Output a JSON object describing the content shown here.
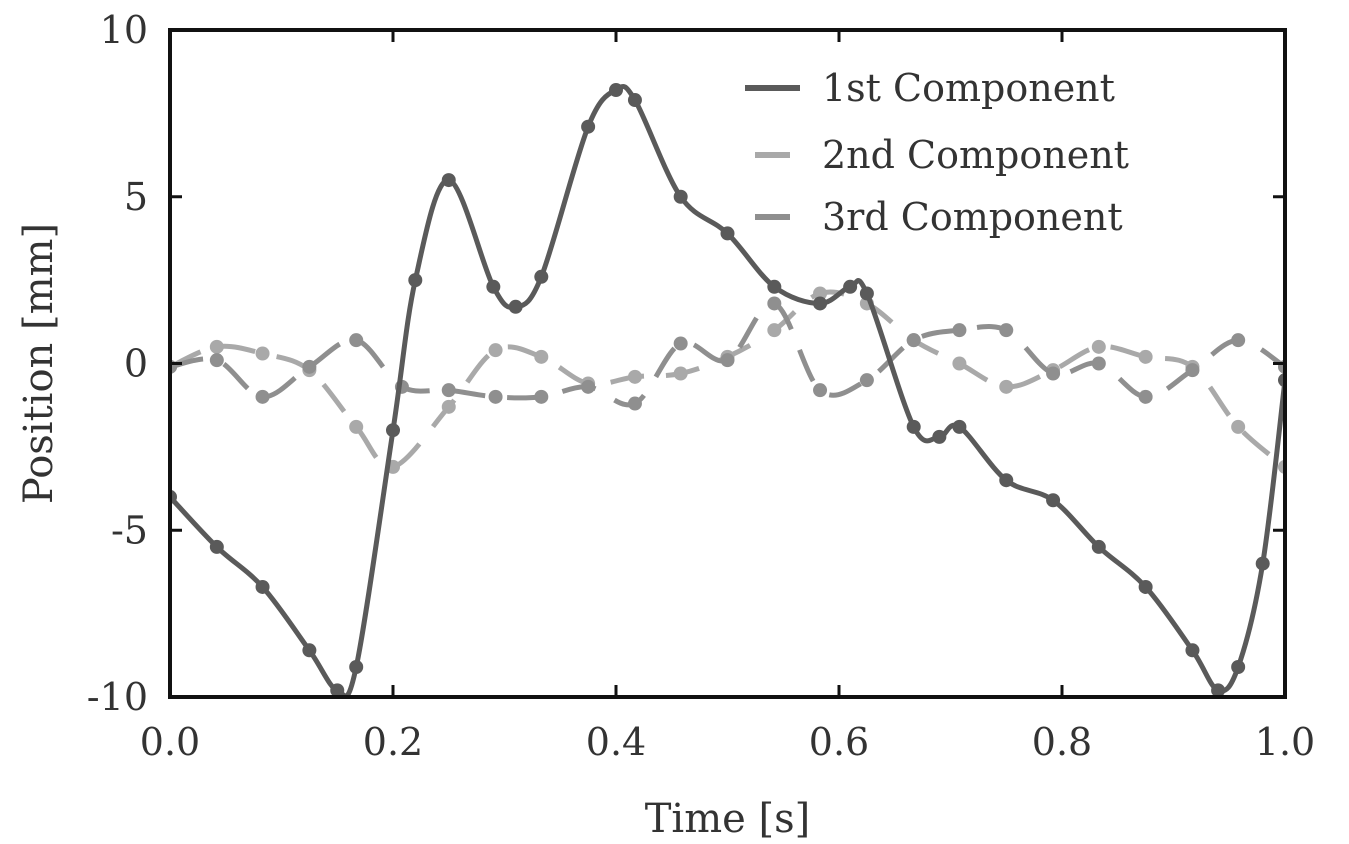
{
  "colors": {
    "series_1": "#5a5a5a",
    "series_2": "#a9a9a9",
    "series_3": "#8f8f8f",
    "axis": "#111111",
    "text": "#333333"
  },
  "chart_data": {
    "type": "line",
    "title": "",
    "xlabel": "Time [s]",
    "ylabel": "Position [mm]",
    "xlim": [
      0.0,
      1.0
    ],
    "ylim": [
      -10,
      10
    ],
    "xticks": [
      0.0,
      0.2,
      0.4,
      0.6,
      0.8,
      1.0
    ],
    "xtick_labels": [
      "0.0",
      "0.2",
      "0.4",
      "0.6",
      "0.8",
      "1.0"
    ],
    "yticks": [
      -10,
      -5,
      0,
      5,
      10
    ],
    "ytick_labels": [
      "-10",
      "-5",
      "0",
      "5",
      "10"
    ],
    "grid": false,
    "legend_position": "top-right",
    "series": [
      {
        "name": "1st Component",
        "style": "solid",
        "x": [
          0.0,
          0.042,
          0.083,
          0.125,
          0.15,
          0.167,
          0.2,
          0.22,
          0.25,
          0.29,
          0.31,
          0.333,
          0.375,
          0.4,
          0.417,
          0.458,
          0.5,
          0.542,
          0.583,
          0.61,
          0.625,
          0.667,
          0.69,
          0.708,
          0.75,
          0.792,
          0.833,
          0.875,
          0.917,
          0.94,
          0.958,
          0.98,
          1.0
        ],
        "y": [
          -4.0,
          -5.5,
          -6.7,
          -8.6,
          -9.8,
          -9.1,
          -2.0,
          2.5,
          5.5,
          2.3,
          1.7,
          2.6,
          7.1,
          8.2,
          7.9,
          5.0,
          3.9,
          2.3,
          1.8,
          2.3,
          2.1,
          -1.9,
          -2.2,
          -1.9,
          -3.5,
          -4.1,
          -5.5,
          -6.7,
          -8.6,
          -9.8,
          -9.1,
          -6.0,
          -0.5
        ]
      },
      {
        "name": "2nd Component",
        "style": "dashed",
        "x": [
          0.0,
          0.042,
          0.083,
          0.125,
          0.167,
          0.2,
          0.25,
          0.292,
          0.333,
          0.375,
          0.417,
          0.458,
          0.5,
          0.542,
          0.583,
          0.625,
          0.667,
          0.708,
          0.75,
          0.792,
          0.833,
          0.875,
          0.917,
          0.958,
          1.0
        ],
        "y": [
          -0.1,
          0.5,
          0.3,
          -0.2,
          -1.9,
          -3.1,
          -1.3,
          0.4,
          0.2,
          -0.6,
          -0.4,
          -0.3,
          0.2,
          1.0,
          2.1,
          1.8,
          0.7,
          0.0,
          -0.7,
          -0.2,
          0.5,
          0.2,
          -0.1,
          -1.9,
          -3.1
        ]
      },
      {
        "name": "3rd Component",
        "style": "dashed",
        "x": [
          0.0,
          0.042,
          0.083,
          0.125,
          0.167,
          0.208,
          0.25,
          0.292,
          0.333,
          0.375,
          0.417,
          0.458,
          0.5,
          0.542,
          0.583,
          0.625,
          0.667,
          0.708,
          0.75,
          0.792,
          0.833,
          0.875,
          0.917,
          0.958,
          1.0
        ],
        "y": [
          -0.1,
          0.1,
          -1.0,
          -0.1,
          0.7,
          -0.7,
          -0.8,
          -1.0,
          -1.0,
          -0.7,
          -1.2,
          0.6,
          0.1,
          1.8,
          -0.8,
          -0.5,
          0.7,
          1.0,
          1.0,
          -0.3,
          0.0,
          -1.0,
          -0.2,
          0.7,
          -0.1
        ]
      }
    ]
  }
}
